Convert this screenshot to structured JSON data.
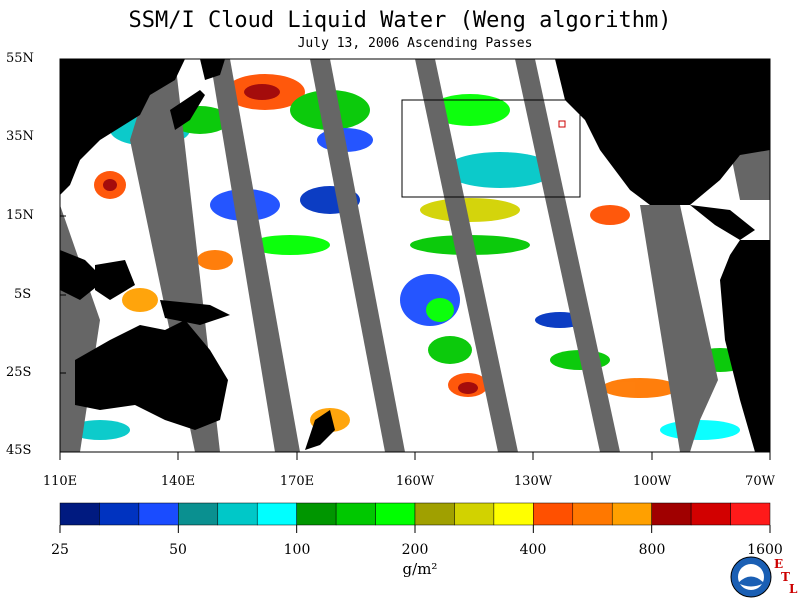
{
  "title": "SSM/I Cloud Liquid Water (Weng algorithm)",
  "subtitle": "July 13, 2006  Ascending Passes",
  "map": {
    "lat_labels": [
      "55N",
      "35N",
      "15N",
      "5S",
      "25S",
      "45S"
    ],
    "lon_labels": [
      "110E",
      "140E",
      "170E",
      "160W",
      "130W",
      "100W",
      "70W"
    ],
    "land_color": "#000000",
    "missing_color": "#666666",
    "ocean_clear_color": "#ffffff"
  },
  "colorbar": {
    "colors": [
      "#001a80",
      "#0033c0",
      "#1a4cff",
      "#0a9090",
      "#00c8c8",
      "#00ffff",
      "#009600",
      "#00c800",
      "#00ff00",
      "#a0a000",
      "#d2d200",
      "#ffff00",
      "#ff5000",
      "#ff7800",
      "#ffa000",
      "#a00000",
      "#d20000",
      "#ff1a1a"
    ],
    "labels": [
      "25",
      "50",
      "100",
      "200",
      "400",
      "800",
      "1600"
    ],
    "unit": "g/m²"
  },
  "logos": {
    "agency": "NOAA",
    "lab_letters": [
      "E",
      "T",
      "L"
    ]
  }
}
